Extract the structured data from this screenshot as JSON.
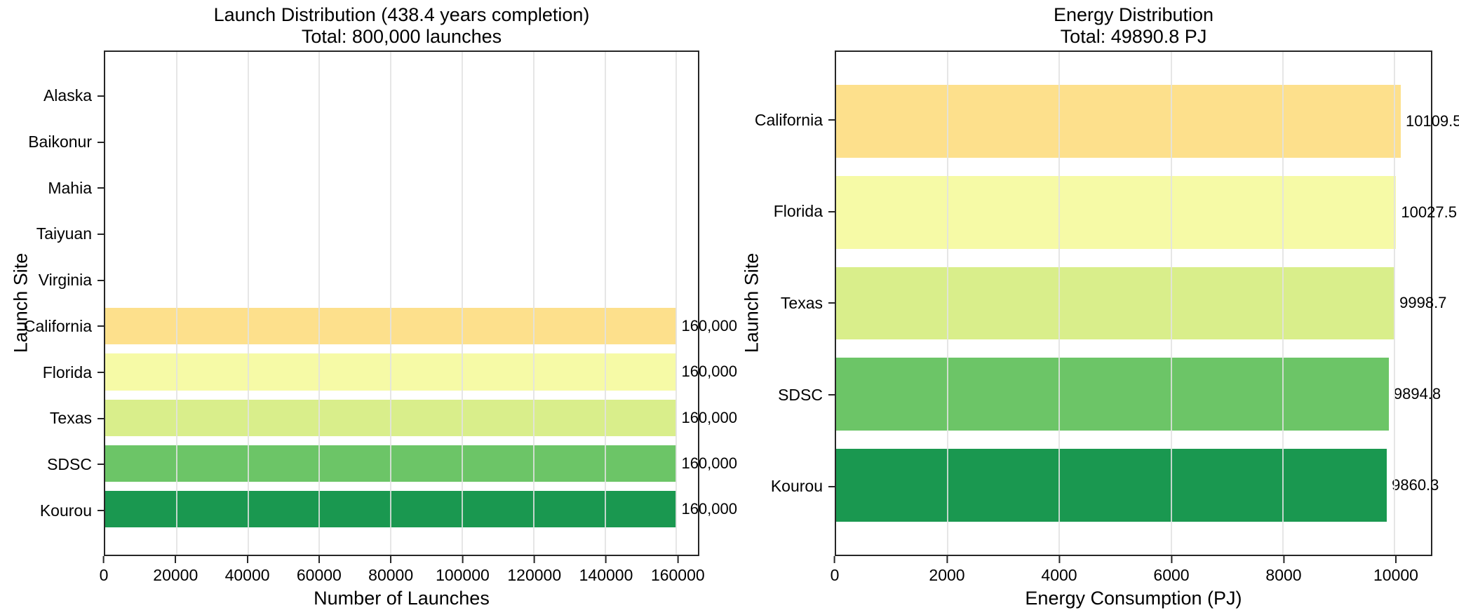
{
  "colors": {
    "background": "#ffffff",
    "spine": "#262626",
    "grid": "#e2e2e2",
    "text": "#000000"
  },
  "chart_data": [
    {
      "type": "bar",
      "orientation": "horizontal",
      "title": "Launch Distribution (438.4 years completion)",
      "subtitle": "Total: 800,000 launches",
      "xlabel": "Number of Launches",
      "ylabel": "Launch Site",
      "categories": [
        "Alaska",
        "Baikonur",
        "Mahia",
        "Taiyuan",
        "Virginia",
        "California",
        "Florida",
        "Texas",
        "SDSC",
        "Kourou"
      ],
      "values": [
        0,
        0,
        0,
        0,
        0,
        160000,
        160000,
        160000,
        160000,
        160000
      ],
      "value_labels": [
        "",
        "",
        "",
        "",
        "",
        "160,000",
        "160,000",
        "160,000",
        "160,000",
        "160,000"
      ],
      "bar_colors": [
        null,
        null,
        null,
        null,
        null,
        "#FDE08C",
        "#F6FAA6",
        "#D9EE8B",
        "#6CC567",
        "#1A9850"
      ],
      "xticks": [
        0,
        20000,
        40000,
        60000,
        80000,
        100000,
        120000,
        140000,
        160000
      ],
      "xtick_labels": [
        "0",
        "20000",
        "40000",
        "60000",
        "80000",
        "100000",
        "120000",
        "140000",
        "160000"
      ],
      "xlim": [
        0,
        166000
      ],
      "grid": "vertical",
      "legend": null
    },
    {
      "type": "bar",
      "orientation": "horizontal",
      "title": "Energy Distribution",
      "subtitle": "Total: 49890.8 PJ",
      "xlabel": "Energy Consumption (PJ)",
      "ylabel": "Launch Site",
      "categories": [
        "California",
        "Florida",
        "Texas",
        "SDSC",
        "Kourou"
      ],
      "values": [
        10109.5,
        10027.5,
        9998.7,
        9894.8,
        9860.3
      ],
      "value_labels": [
        "10109.5",
        "10027.5",
        "9998.7",
        "9894.8",
        "9860.3"
      ],
      "bar_colors": [
        "#FDE08C",
        "#F6FAA6",
        "#D9EE8B",
        "#6CC567",
        "#1A9850"
      ],
      "xticks": [
        0,
        2000,
        4000,
        6000,
        8000,
        10000
      ],
      "xtick_labels": [
        "0",
        "2000",
        "4000",
        "6000",
        "8000",
        "10000"
      ],
      "xlim": [
        0,
        10650
      ],
      "grid": "vertical",
      "legend": null
    }
  ]
}
